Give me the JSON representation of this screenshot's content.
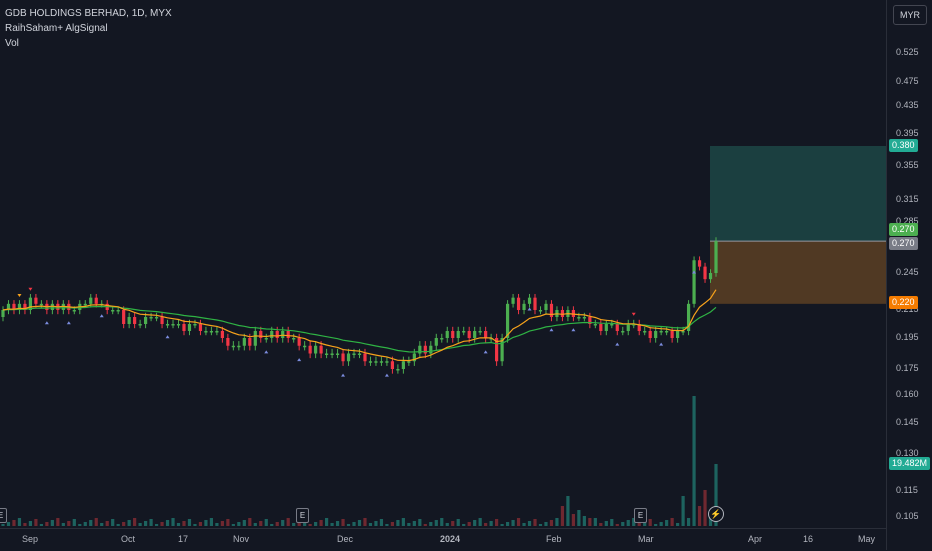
{
  "header": {
    "symbol_line": "GDB HOLDINGS BERHAD, 1D, MYX",
    "indicator_line": "RaihSaham+ AlgSignal",
    "volume_line": "Vol"
  },
  "currency_button": "MYR",
  "price_axis": {
    "ticks": [
      "0.525",
      "0.475",
      "0.435",
      "0.395",
      "0.355",
      "0.315",
      "0.285",
      "0.245",
      "0.215",
      "0.195",
      "0.175",
      "0.160",
      "0.145",
      "0.130",
      "0.115",
      "0.105"
    ]
  },
  "price_tags": {
    "take_profit": "0.380",
    "entry_green": "0.270",
    "last_price": "0.270",
    "stop_loss": "0.220",
    "volume": "19.482M"
  },
  "time_axis": {
    "labels": [
      "Sep",
      "Oct",
      "17",
      "Nov",
      "Dec",
      "2024",
      "Feb",
      "Mar",
      "Apr",
      "16",
      "May"
    ]
  },
  "earnings_marker": "E",
  "flash_icon": "lightning-icon",
  "colors": {
    "background": "#131722",
    "up": "#4caf50",
    "down": "#f23645",
    "ema_fast": "#f7a21b",
    "ema_slow": "#22ab94",
    "target_zone": "#1f4d4b",
    "stop_zone": "#5c3f23",
    "volume_teal": "#1f6b66"
  },
  "chart_data": {
    "type": "candlestick",
    "title": "GDB HOLDINGS BERHAD, 1D, MYX",
    "x_range": [
      "Aug",
      "May"
    ],
    "y_scale": "log",
    "ylim": [
      0.1,
      0.58
    ],
    "closes": [
      0.215,
      0.22,
      0.215,
      0.22,
      0.215,
      0.225,
      0.22,
      0.22,
      0.215,
      0.22,
      0.215,
      0.22,
      0.215,
      0.215,
      0.22,
      0.22,
      0.225,
      0.22,
      0.22,
      0.215,
      0.215,
      0.215,
      0.205,
      0.21,
      0.205,
      0.205,
      0.21,
      0.21,
      0.21,
      0.205,
      0.205,
      0.205,
      0.205,
      0.2,
      0.205,
      0.205,
      0.2,
      0.2,
      0.2,
      0.2,
      0.195,
      0.19,
      0.19,
      0.19,
      0.195,
      0.19,
      0.2,
      0.195,
      0.195,
      0.2,
      0.195,
      0.2,
      0.195,
      0.195,
      0.19,
      0.19,
      0.185,
      0.19,
      0.185,
      0.185,
      0.185,
      0.185,
      0.18,
      0.185,
      0.185,
      0.185,
      0.18,
      0.18,
      0.18,
      0.18,
      0.18,
      0.175,
      0.175,
      0.18,
      0.18,
      0.185,
      0.19,
      0.185,
      0.19,
      0.195,
      0.195,
      0.2,
      0.195,
      0.2,
      0.2,
      0.195,
      0.2,
      0.2,
      0.195,
      0.195,
      0.18,
      0.195,
      0.22,
      0.225,
      0.215,
      0.22,
      0.225,
      0.215,
      0.215,
      0.22,
      0.21,
      0.215,
      0.21,
      0.215,
      0.21,
      0.21,
      0.21,
      0.205,
      0.205,
      0.2,
      0.205,
      0.205,
      0.2,
      0.2,
      0.205,
      0.205,
      0.2,
      0.2,
      0.195,
      0.2,
      0.2,
      0.2,
      0.195,
      0.2,
      0.2,
      0.22,
      0.255,
      0.25,
      0.24,
      0.245,
      0.27
    ],
    "volume_note": "volume in shares; last bar 19.482M",
    "indicators": [
      {
        "name": "EMA fast",
        "color": "#f7a21b"
      },
      {
        "name": "EMA slow",
        "color": "#22ab94"
      }
    ],
    "position": {
      "entry": 0.27,
      "target": 0.38,
      "stop": 0.22
    }
  }
}
